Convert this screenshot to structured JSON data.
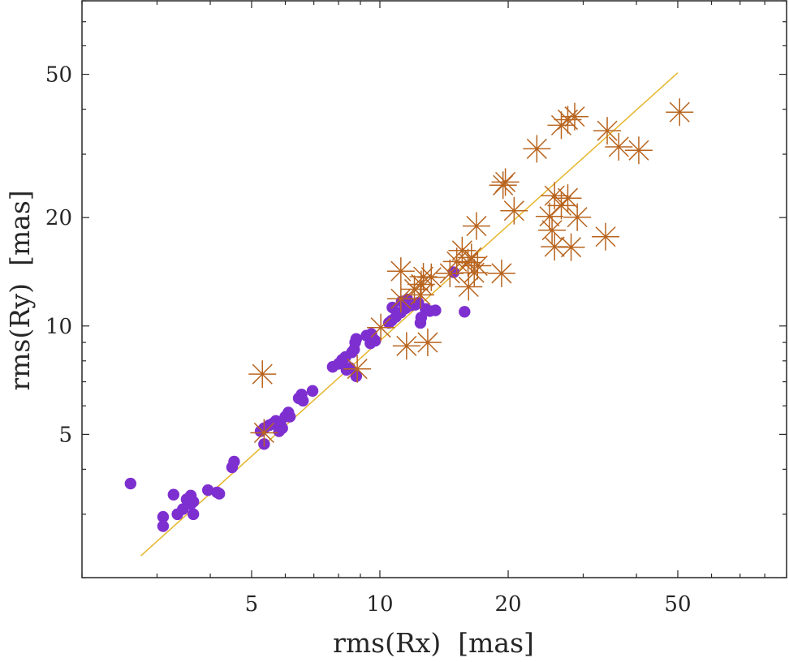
{
  "chart_data": {
    "type": "scatter",
    "x_scale": "log",
    "y_scale": "log",
    "xlabel": "rms(Rx)  [mas]",
    "ylabel": "rms(Ry)  [mas]",
    "xlim": [
      2.0,
      90.0
    ],
    "ylim": [
      2.0,
      80.0
    ],
    "x_ticks": [
      5,
      10,
      20,
      50
    ],
    "x_tick_labels": [
      "5",
      "10",
      "20",
      "50"
    ],
    "y_ticks": [
      5,
      10,
      20,
      50
    ],
    "y_tick_labels": [
      "5",
      "10",
      "20",
      "50"
    ],
    "x_minor_ticks": [
      2,
      3,
      4,
      6,
      7,
      8,
      9,
      30,
      40,
      60,
      70,
      80,
      90
    ],
    "y_minor_ticks": [
      2,
      3,
      4,
      6,
      7,
      8,
      9,
      30,
      40,
      60,
      70,
      80
    ],
    "grid": false,
    "colors": {
      "axis": "#262626",
      "dots": "#7e2fd0",
      "stars": "#b8641e",
      "fit_line": "#e6b52a"
    },
    "series": [
      {
        "name": "dots",
        "marker": "filled-circle",
        "points": [
          [
            2.6,
            3.65
          ],
          [
            3.1,
            2.95
          ],
          [
            3.1,
            2.78
          ],
          [
            3.28,
            3.4
          ],
          [
            3.35,
            3.0
          ],
          [
            3.45,
            3.1
          ],
          [
            3.52,
            3.3
          ],
          [
            3.6,
            3.2
          ],
          [
            3.6,
            3.38
          ],
          [
            3.65,
            3.0
          ],
          [
            3.65,
            3.25
          ],
          [
            3.95,
            3.5
          ],
          [
            4.15,
            3.45
          ],
          [
            4.2,
            3.42
          ],
          [
            4.5,
            4.05
          ],
          [
            4.55,
            4.2
          ],
          [
            5.25,
            5.1
          ],
          [
            5.35,
            4.7
          ],
          [
            5.35,
            5.2
          ],
          [
            5.5,
            5.3
          ],
          [
            5.6,
            5.35
          ],
          [
            5.7,
            5.45
          ],
          [
            5.8,
            5.1
          ],
          [
            5.85,
            5.3
          ],
          [
            5.9,
            5.2
          ],
          [
            6.0,
            5.6
          ],
          [
            6.1,
            5.75
          ],
          [
            6.15,
            5.6
          ],
          [
            6.45,
            6.3
          ],
          [
            6.55,
            6.45
          ],
          [
            6.6,
            6.2
          ],
          [
            6.95,
            6.6
          ],
          [
            7.75,
            7.7
          ],
          [
            8.0,
            7.85
          ],
          [
            8.15,
            8.05
          ],
          [
            8.3,
            8.2
          ],
          [
            8.35,
            7.55
          ],
          [
            8.5,
            7.65
          ],
          [
            8.6,
            8.45
          ],
          [
            8.7,
            8.6
          ],
          [
            8.75,
            9.0
          ],
          [
            8.8,
            9.2
          ],
          [
            8.8,
            7.25
          ],
          [
            9.3,
            9.4
          ],
          [
            9.5,
            8.95
          ],
          [
            9.55,
            9.5
          ],
          [
            9.65,
            9.2
          ],
          [
            9.75,
            9.1
          ],
          [
            10.5,
            10.2
          ],
          [
            10.65,
            10.35
          ],
          [
            10.7,
            11.25
          ],
          [
            10.9,
            10.6
          ],
          [
            11.2,
            10.9
          ],
          [
            11.25,
            11.7
          ],
          [
            11.5,
            11.2
          ],
          [
            11.6,
            11.85
          ],
          [
            11.8,
            11.4
          ],
          [
            12.1,
            11.45
          ],
          [
            12.3,
            11.6
          ],
          [
            12.45,
            10.2
          ],
          [
            12.5,
            10.55
          ],
          [
            12.8,
            11.15
          ],
          [
            13.1,
            11.0
          ],
          [
            13.5,
            11.05
          ],
          [
            14.9,
            14.1
          ],
          [
            15.8,
            10.95
          ]
        ]
      },
      {
        "name": "stars",
        "marker": "asterisk",
        "points": [
          [
            5.3,
            7.35
          ],
          [
            5.35,
            5.05
          ],
          [
            8.85,
            7.6
          ],
          [
            10.05,
            9.9
          ],
          [
            11.2,
            14.2
          ],
          [
            11.2,
            11.9
          ],
          [
            11.55,
            8.8
          ],
          [
            12.05,
            12.65
          ],
          [
            12.45,
            12.2
          ],
          [
            12.5,
            13.05
          ],
          [
            12.65,
            13.7
          ],
          [
            12.95,
            9.0
          ],
          [
            13.2,
            13.65
          ],
          [
            14.6,
            14.0
          ],
          [
            15.15,
            15.1
          ],
          [
            15.6,
            16.2
          ],
          [
            16.1,
            15.0
          ],
          [
            16.15,
            12.85
          ],
          [
            16.4,
            15.5
          ],
          [
            16.65,
            14.05
          ],
          [
            16.85,
            18.95
          ],
          [
            16.95,
            14.7
          ],
          [
            19.3,
            14.0
          ],
          [
            19.45,
            24.6
          ],
          [
            19.7,
            25.1
          ],
          [
            20.65,
            20.9
          ],
          [
            23.35,
            31.05
          ],
          [
            25.0,
            20.15
          ],
          [
            25.35,
            18.45
          ],
          [
            25.7,
            16.6
          ],
          [
            25.7,
            23.0
          ],
          [
            26.65,
            36.1
          ],
          [
            26.65,
            21.6
          ],
          [
            27.6,
            22.65
          ],
          [
            27.6,
            37.4
          ],
          [
            28.1,
            16.55
          ],
          [
            28.65,
            38.15
          ],
          [
            29.05,
            20.05
          ],
          [
            33.85,
            17.7
          ],
          [
            34.15,
            34.85
          ],
          [
            36.35,
            31.45
          ],
          [
            40.5,
            30.75
          ],
          [
            50.5,
            39.25
          ]
        ]
      },
      {
        "name": "fit",
        "marker": "line",
        "points": [
          [
            2.75,
            2.3
          ],
          [
            50.0,
            50.5
          ]
        ]
      }
    ]
  }
}
